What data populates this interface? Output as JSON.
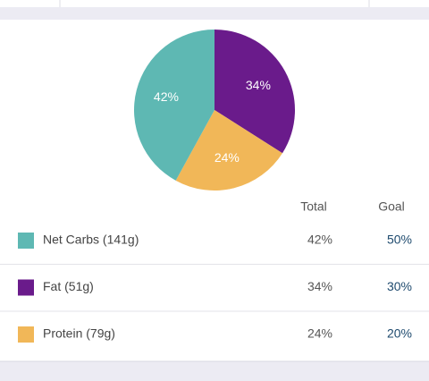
{
  "chart_data": {
    "type": "pie",
    "values": [
      34,
      24,
      42
    ],
    "value_labels": [
      "34%",
      "24%",
      "42%"
    ],
    "colors": [
      "#6a1b8b",
      "#f1b758",
      "#5eb8b3"
    ]
  },
  "table": {
    "headers": [
      "Total",
      "Goal"
    ],
    "rows": [
      {
        "label": "Net Carbs (141g)",
        "total": "42%",
        "goal": "50%",
        "color": "#5eb8b3"
      },
      {
        "label": "Fat (51g)",
        "total": "34%",
        "goal": "30%",
        "color": "#6a1b8b"
      },
      {
        "label": "Protein (79g)",
        "total": "24%",
        "goal": "20%",
        "color": "#f1b758"
      }
    ]
  }
}
